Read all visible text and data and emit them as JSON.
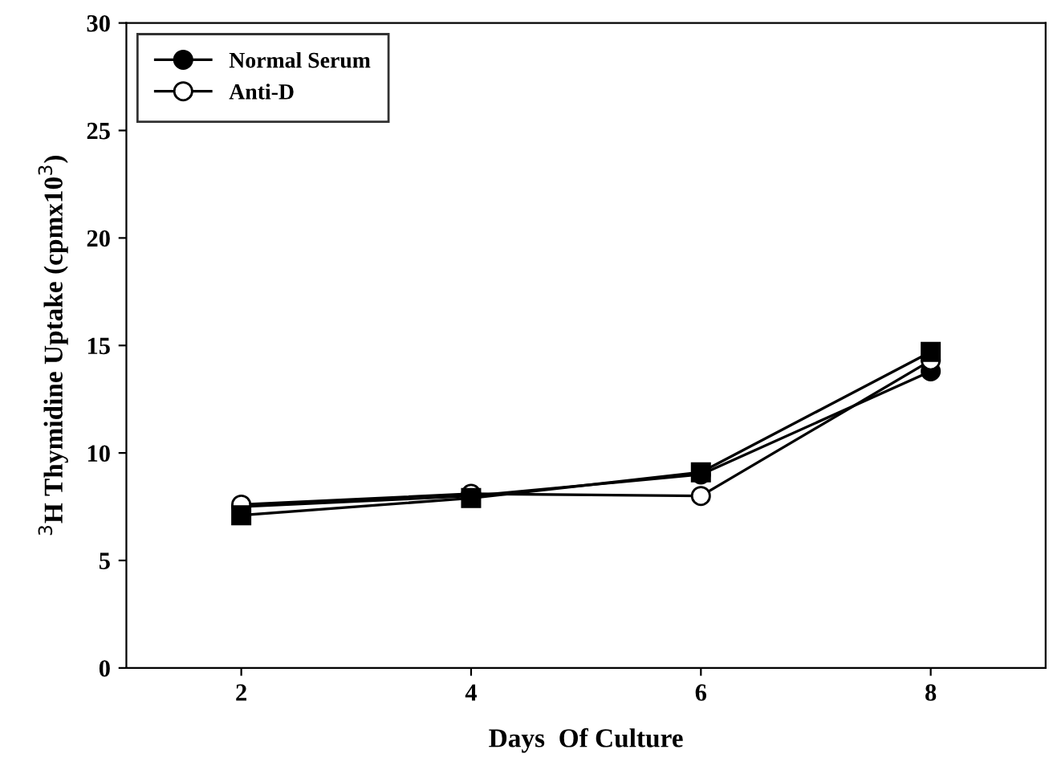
{
  "chart_data": {
    "type": "line",
    "xlabel": "Days  Of Culture",
    "ylabel": "$^{3}$H Thymidine Uptake (cpmx10$^{3}$)",
    "x": [
      2,
      4,
      6,
      8
    ],
    "xlim": [
      1,
      9
    ],
    "xticks": [
      2,
      4,
      6,
      8
    ],
    "ylim": [
      0,
      30
    ],
    "yticks": [
      0,
      5,
      10,
      15,
      20,
      25,
      30
    ],
    "grid": false,
    "legend": "top left",
    "line_style": "solid",
    "series": [
      {
        "name": "Normal Serum",
        "color": "#000000",
        "marker": "circle",
        "values": [
          7.5,
          8.0,
          9.0,
          13.8
        ]
      },
      {
        "name": "Anti-D",
        "color": "#ffffff",
        "marker": "circle",
        "values": [
          7.6,
          8.1,
          8.0,
          14.3
        ]
      },
      {
        "color": "#000000",
        "marker": "square",
        "values": [
          7.1,
          7.9,
          9.1,
          14.7
        ]
      }
    ]
  }
}
